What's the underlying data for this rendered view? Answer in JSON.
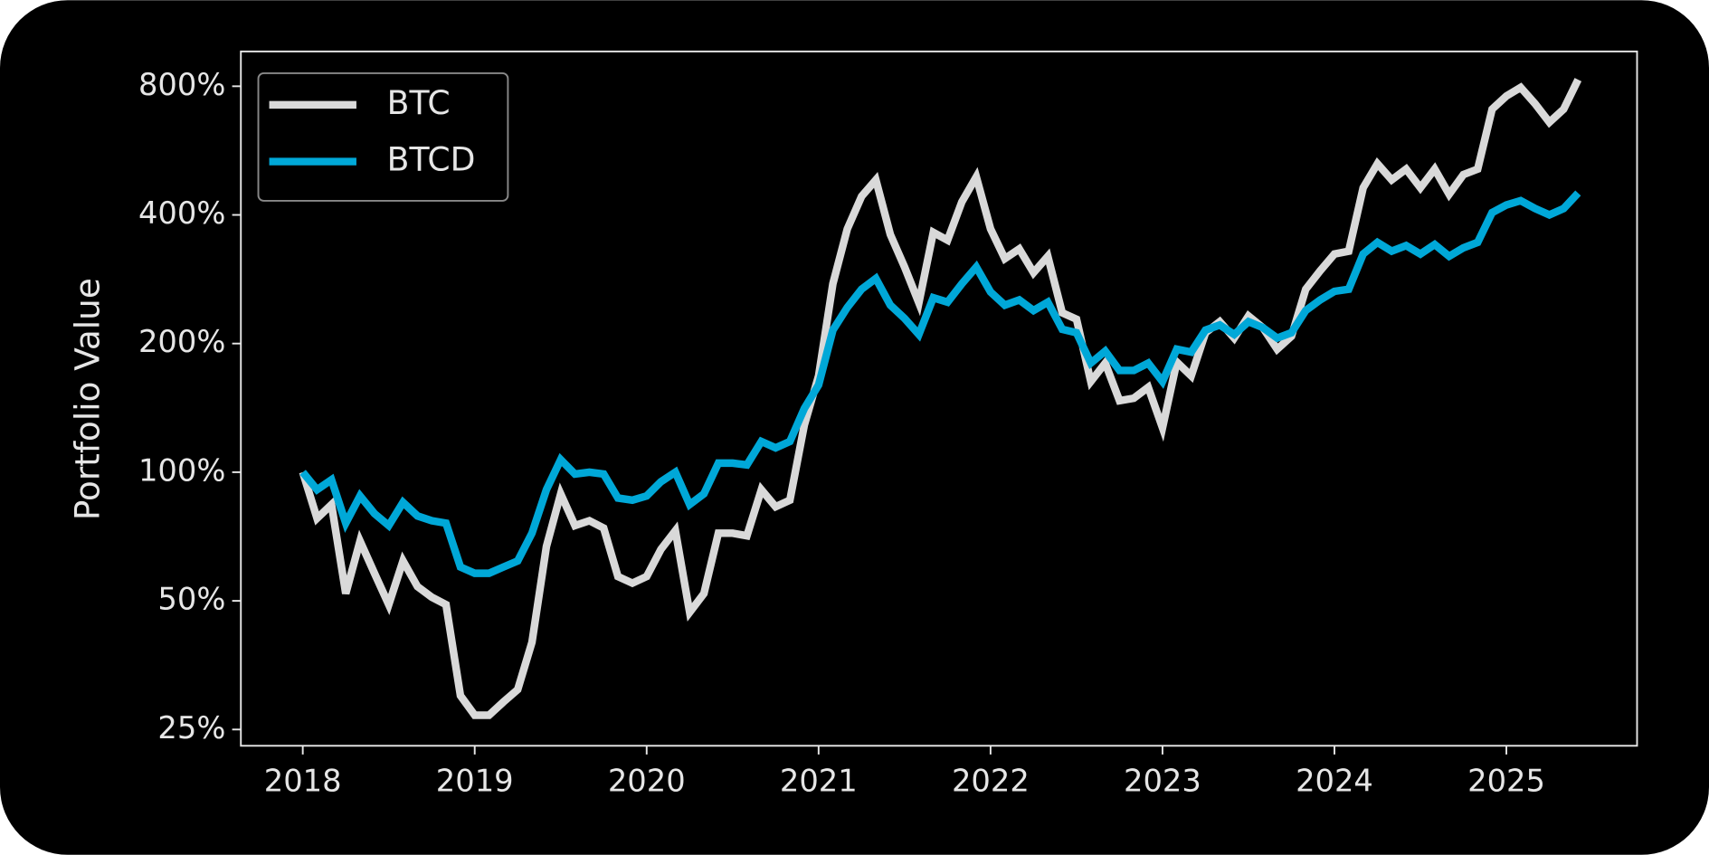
{
  "chart_data": {
    "type": "line",
    "ylabel": "Portfolio Value",
    "yscale": "log",
    "legend": "upper left",
    "xlim": [
      2017.64,
      2025.76
    ],
    "xticks": [
      2018,
      2019,
      2020,
      2021,
      2022,
      2023,
      2024,
      2025
    ],
    "ylim": [
      22.9,
      965
    ],
    "yticks": [
      {
        "value": 25,
        "label": "25%"
      },
      {
        "value": 50,
        "label": "50%"
      },
      {
        "value": 100,
        "label": "100%"
      },
      {
        "value": 200,
        "label": "200%"
      },
      {
        "value": 400,
        "label": "400%"
      },
      {
        "value": 800,
        "label": "800%"
      }
    ],
    "x": [
      2018,
      2018.083,
      2018.167,
      2018.25,
      2018.333,
      2018.417,
      2018.5,
      2018.583,
      2018.667,
      2018.75,
      2018.833,
      2018.917,
      2019,
      2019.083,
      2019.167,
      2019.25,
      2019.333,
      2019.417,
      2019.5,
      2019.583,
      2019.667,
      2019.75,
      2019.833,
      2019.917,
      2020,
      2020.083,
      2020.167,
      2020.25,
      2020.333,
      2020.417,
      2020.5,
      2020.583,
      2020.667,
      2020.75,
      2020.833,
      2020.917,
      2021,
      2021.083,
      2021.167,
      2021.25,
      2021.333,
      2021.417,
      2021.5,
      2021.583,
      2021.667,
      2021.75,
      2021.833,
      2021.917,
      2022,
      2022.083,
      2022.167,
      2022.25,
      2022.333,
      2022.417,
      2022.5,
      2022.583,
      2022.667,
      2022.75,
      2022.833,
      2022.917,
      2023,
      2023.083,
      2023.167,
      2023.25,
      2023.333,
      2023.417,
      2023.5,
      2023.583,
      2023.667,
      2023.75,
      2023.833,
      2023.917,
      2024,
      2024.083,
      2024.167,
      2024.25,
      2024.333,
      2024.417,
      2024.5,
      2024.583,
      2024.667,
      2024.75,
      2024.833,
      2024.917,
      2025,
      2025.083,
      2025.167,
      2025.25,
      2025.333,
      2025.417
    ],
    "series": [
      {
        "name": "BTC",
        "color": "#d9d9d9",
        "values": [
          100,
          78,
          84,
          52,
          69,
          58,
          49,
          62,
          54,
          51,
          49,
          30,
          27,
          27,
          29,
          31,
          40,
          67,
          89,
          75,
          77,
          74,
          57,
          55,
          57,
          66,
          73,
          47,
          52,
          72,
          72,
          71,
          91,
          83,
          86,
          129,
          168,
          276,
          371,
          442,
          483,
          360,
          302,
          249,
          364,
          349,
          429,
          491,
          371,
          316,
          333,
          293,
          320,
          236,
          228,
          163,
          180,
          147,
          149,
          158,
          127,
          181,
          168,
          212,
          225,
          206,
          232,
          218,
          194,
          208,
          268,
          296,
          324,
          329,
          463,
          527,
          483,
          512,
          463,
          512,
          447,
          497,
          512,
          707,
          759,
          795,
          728,
          659,
          707,
          829
        ]
      },
      {
        "name": "BTCD",
        "color": "#00a8d8",
        "values": [
          100,
          91,
          96,
          76,
          88,
          80,
          75,
          85,
          79,
          77,
          76,
          60,
          58,
          58,
          60,
          62,
          72,
          91,
          107,
          99,
          100,
          99,
          87,
          86,
          88,
          95,
          100,
          84,
          89,
          105,
          105,
          104,
          118,
          114,
          118,
          141,
          160,
          215,
          243,
          268,
          284,
          246,
          229,
          210,
          256,
          250,
          276,
          302,
          264,
          246,
          253,
          239,
          250,
          216,
          212,
          180,
          192,
          173,
          173,
          180,
          163,
          194,
          191,
          215,
          221,
          210,
          225,
          218,
          206,
          212,
          239,
          253,
          265,
          268,
          324,
          345,
          329,
          339,
          324,
          341,
          320,
          335,
          345,
          405,
          422,
          432,
          414,
          400,
          414,
          450
        ]
      }
    ]
  }
}
